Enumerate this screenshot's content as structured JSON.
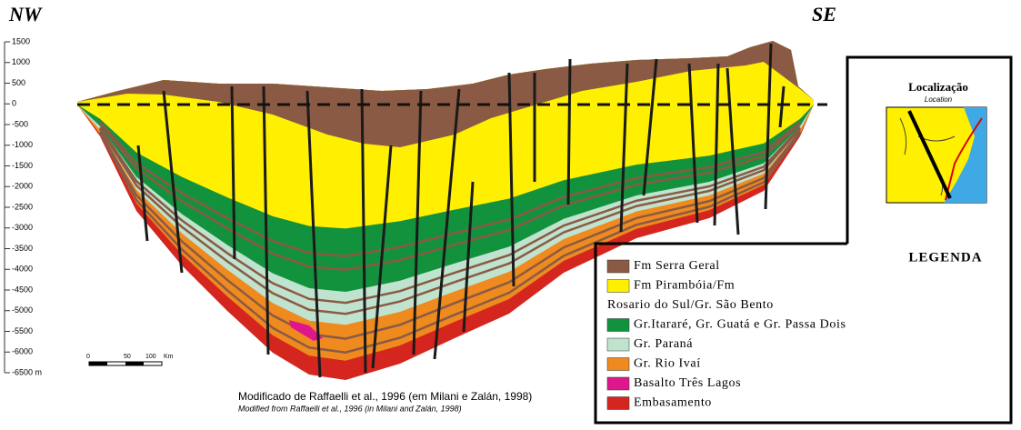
{
  "header": {
    "left": "NW",
    "right": "SE"
  },
  "axis": {
    "labels": [
      "1500",
      "1000",
      "500",
      "0",
      "-500",
      "-1000",
      "-1500",
      "-2000",
      "-2500",
      "-3000",
      "-3500",
      "-4000",
      "-4500",
      "-5000",
      "-5500",
      "-6000",
      "-6500 m"
    ]
  },
  "scale_bar": {
    "labels": [
      "0",
      "50",
      "100",
      "Km"
    ]
  },
  "location": {
    "title": "Localização",
    "subtitle": "Location"
  },
  "legend": {
    "title": "LEGENDA",
    "items": [
      {
        "lines": [
          "Fm Serra Geral"
        ]
      },
      {
        "lines": [
          "Fm Pirambóia/Fm",
          "Rosario do Sul/Gr. São Bento"
        ]
      },
      {
        "lines": [
          "Gr.Itararé, Gr. Guatá e Gr. Passa Dois"
        ]
      },
      {
        "lines": [
          "Gr. Paraná"
        ]
      },
      {
        "lines": [
          "Gr. Rio Ivaí"
        ]
      },
      {
        "lines": [
          "Basalto Três Lagos"
        ]
      },
      {
        "lines": [
          "Embasamento"
        ]
      }
    ]
  },
  "caption": {
    "pt": "Modificado de Raffaelli et al., 1996 (em Milani e Zalán, 1998)",
    "en": "Modified from Raffaelli et al., 1996 (in Milani and Zalán, 1998)"
  }
}
